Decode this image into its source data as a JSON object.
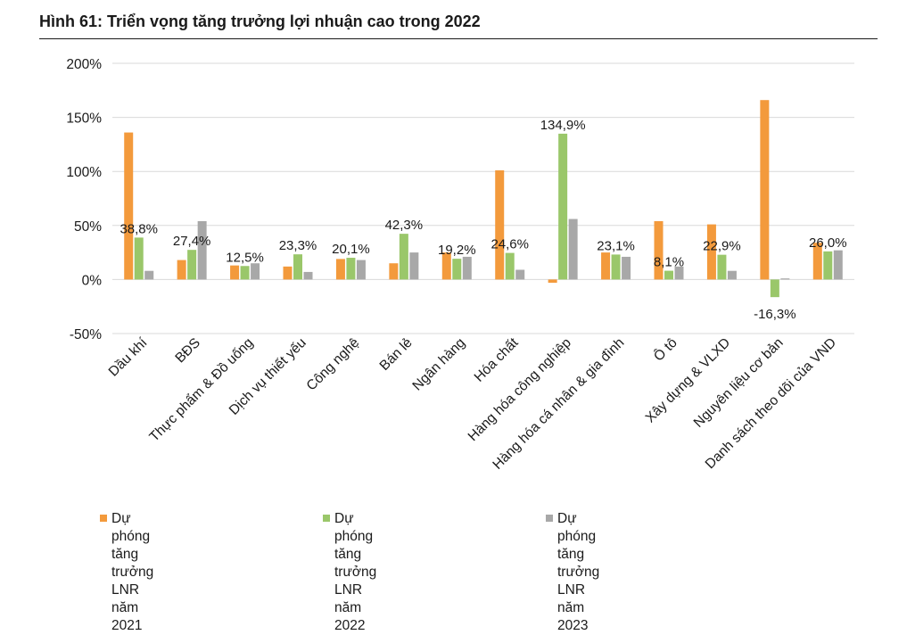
{
  "figure_title": "Hình 61: Triển vọng tăng trưởng lợi nhuận cao trong 2022",
  "colors": {
    "series_2021": "#F39A3C",
    "series_2022": "#9AC76A",
    "series_2023": "#A8A8A8",
    "grid": "#d9d9d9",
    "text": "#1a1a1a"
  },
  "chart_data": {
    "type": "bar",
    "title": "",
    "xlabel": "",
    "ylabel": "",
    "ylim": [
      -50,
      200
    ],
    "yticks": [
      -50,
      0,
      50,
      100,
      150,
      200
    ],
    "ytick_labels": [
      "-50%",
      "0%",
      "50%",
      "100%",
      "150%",
      "200%"
    ],
    "grid": true,
    "legend_position": "bottom",
    "categories": [
      "Dầu khí",
      "BĐS",
      "Thực phẩm & Đồ uống",
      "Dịch vụ thiết yếu",
      "Công nghệ",
      "Bán lẻ",
      "Ngân hàng",
      "Hóa chất",
      "Hàng hóa công nghiệp",
      "Hàng hóa cá nhân & gia đình",
      "Ô tô",
      "Xây dựng & VLXD",
      "Nguyên liệu cơ bản",
      "Danh sách theo dõi của VND"
    ],
    "series": [
      {
        "name_line1": "Dự phóng tăng trưởng",
        "name_line2": "LNR năm 2021",
        "name": "Dự phóng tăng trưởng LNR năm 2021",
        "values": [
          136,
          18,
          13,
          12,
          19,
          15,
          25,
          101,
          -3,
          25,
          54,
          51,
          166,
          34
        ]
      },
      {
        "name_line1": "Dự phóng tăng trưởng",
        "name_line2": "LNR năm 2022",
        "name": "Dự phóng tăng trưởng LNR năm 2022",
        "values": [
          38.8,
          27.4,
          12.5,
          23.3,
          20.1,
          42.3,
          19.2,
          24.6,
          134.9,
          23.1,
          8.1,
          22.9,
          -16.3,
          26.0
        ]
      },
      {
        "name_line1": "Dự phóng tăng trưởng LNR năm 2023",
        "name_line2": "",
        "name": "Dự phóng tăng trưởng LNR năm 2023",
        "values": [
          8,
          54,
          15,
          7,
          18,
          25,
          21,
          9,
          56,
          21,
          12,
          8,
          1,
          27
        ]
      }
    ],
    "data_labels": [
      "38,8%",
      "27,4%",
      "12,5%",
      "23,3%",
      "20,1%",
      "42,3%",
      "19,2%",
      "24,6%",
      "134,9%",
      "23,1%",
      "8,1%",
      "22,9%",
      "-16,3%",
      "26,0%"
    ]
  }
}
